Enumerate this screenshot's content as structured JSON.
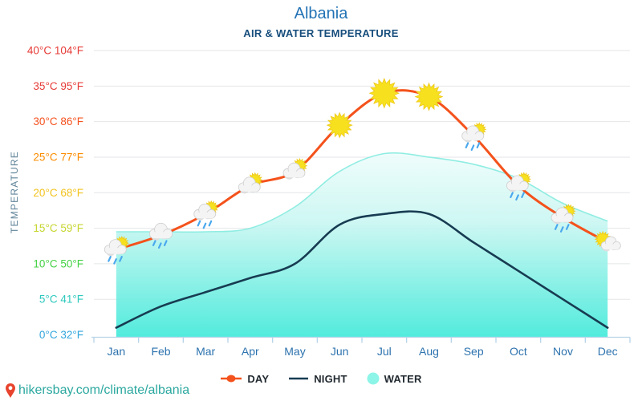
{
  "header": {
    "title": "Albania",
    "subtitle": "AIR & WATER TEMPERATURE"
  },
  "chart_data": {
    "type": "line",
    "title": "Albania",
    "subtitle": "AIR & WATER TEMPERATURE",
    "ylabel": "TEMPERATURE",
    "ylim": [
      0,
      40
    ],
    "grid": true,
    "legend_position": "bottom",
    "categories": [
      "Jan",
      "Feb",
      "Mar",
      "Apr",
      "May",
      "Jun",
      "Jul",
      "Aug",
      "Sep",
      "Oct",
      "Nov",
      "Dec"
    ],
    "y_ticks": [
      {
        "label": "40°C 104°F",
        "value": 40,
        "color": "#e63b37"
      },
      {
        "label": "35°C 95°F",
        "value": 35,
        "color": "#e63b37"
      },
      {
        "label": "30°C 86°F",
        "value": 30,
        "color": "#f4511e"
      },
      {
        "label": "25°C 77°F",
        "value": 25,
        "color": "#fb8c00"
      },
      {
        "label": "20°C 68°F",
        "value": 20,
        "color": "#f2c31e"
      },
      {
        "label": "15°C 59°F",
        "value": 15,
        "color": "#c6d62f"
      },
      {
        "label": "10°C 50°F",
        "value": 10,
        "color": "#45d145"
      },
      {
        "label": "5°C 41°F",
        "value": 5,
        "color": "#2cc8bd"
      },
      {
        "label": "0°C 32°F",
        "value": 0,
        "color": "#33a6dd"
      }
    ],
    "series": [
      {
        "name": "DAY",
        "type": "line",
        "color": "#f4521c",
        "values": [
          12,
          14,
          17,
          21,
          23,
          29.5,
          34,
          33.5,
          28,
          21,
          16.5,
          13
        ],
        "marker_icons": [
          "rain-sun",
          "rain",
          "rain-sun",
          "partly",
          "partly",
          "sun",
          "sun",
          "sun",
          "rain-sun",
          "rain-sun",
          "rain-sun",
          "partly-left"
        ]
      },
      {
        "name": "NIGHT",
        "type": "line",
        "color": "#173c52",
        "values": [
          1,
          4,
          6,
          8,
          10,
          15.5,
          17,
          17,
          13,
          9,
          5,
          1
        ]
      },
      {
        "name": "WATER",
        "type": "area",
        "color_top": "#eefdfc",
        "color_mid": "#c9f7f2",
        "color_bottom": "#3fe9d9",
        "stroke": "#84ecdf",
        "legend_swatch": "#8df5e8",
        "values": [
          14.5,
          14.5,
          14.5,
          15,
          18,
          23,
          25.5,
          25,
          24,
          22,
          18.5,
          16
        ]
      }
    ]
  },
  "icon_colors": {
    "sun_fill": "#f7e11f",
    "sun_stroke": "#eec91c",
    "cloud_front": "#f4f4f4",
    "cloud_back": "#dedede",
    "cloud_stroke": "#cfcfcf",
    "rain_drop": "#4aa8ee"
  },
  "axis_style": {
    "grid_color": "#e4e6e8",
    "axis_color": "#b7d3e8",
    "month_color": "#2d73ae",
    "temperature_label_color": "#5f8499"
  },
  "footer": {
    "site": "hikersbay.com/climate/albania",
    "pin_color": "#e8432d"
  }
}
